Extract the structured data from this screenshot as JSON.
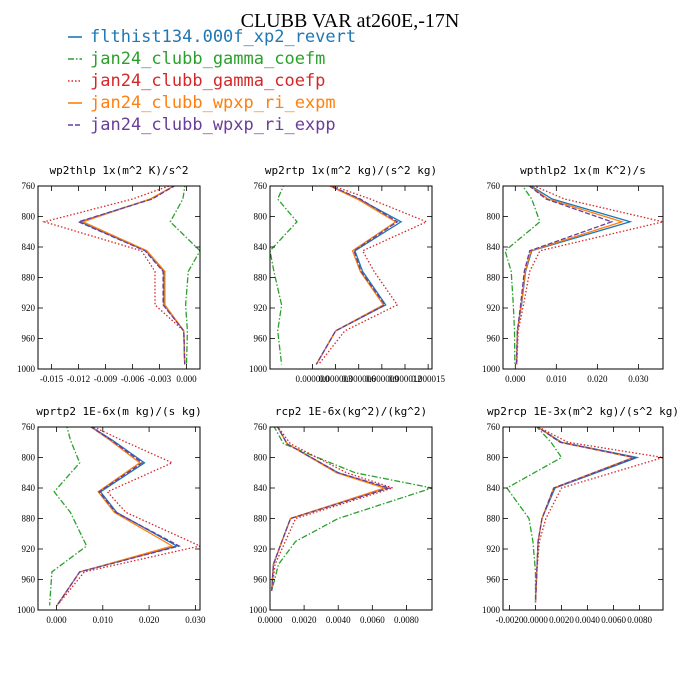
{
  "figure": {
    "title": "CLUBB VAR at260E,-17N"
  },
  "legend": [
    {
      "name": "flthist134.000f_xp2_revert",
      "color": "#1f77b4",
      "dash": "solid"
    },
    {
      "name": "jan24_clubb_gamma_coefm",
      "color": "#2ca02c",
      "dash": "dashdot"
    },
    {
      "name": "jan24_clubb_gamma_coefp",
      "color": "#d62728",
      "dash": "dot"
    },
    {
      "name": "jan24_clubb_wpxp_ri_expm",
      "color": "#ff7f0e",
      "dash": "solid"
    },
    {
      "name": "jan24_clubb_wpxp_ri_expp",
      "color": "#6a3d9a",
      "dash": "dash"
    }
  ],
  "chart_data": [
    {
      "type": "line",
      "title": "wp2thlp  1x(m^2 K)/s^2",
      "xlim": [
        -0.0165,
        0.0015
      ],
      "ylim": [
        760,
        1000
      ],
      "xticks": [
        -0.015,
        -0.012,
        -0.009,
        -0.006,
        -0.003,
        0.0
      ],
      "xtick_labels": [
        "-0.015",
        "-0.012",
        "-0.009",
        "-0.006",
        "-0.003",
        "0.000"
      ],
      "yticks": [
        760,
        800,
        840,
        880,
        920,
        960,
        1000
      ],
      "ytick_labels": [
        "760",
        "800",
        "840",
        "880",
        "920",
        "960",
        "1000"
      ],
      "y": [
        754,
        777,
        807,
        845,
        872,
        916,
        950,
        994
      ],
      "series": [
        {
          "values": [
            -0.0005,
            -0.004,
            -0.0118,
            -0.0045,
            -0.0025,
            -0.0025,
            -0.0003,
            -0.0002
          ]
        },
        {
          "values": [
            -0.0001,
            -0.0004,
            -0.0018,
            0.0015,
            0.0002,
            -0.0001,
            0.0001,
            0.0
          ]
        },
        {
          "values": [
            -0.0005,
            -0.006,
            -0.0158,
            -0.005,
            -0.0035,
            -0.0035,
            -0.0003,
            -0.0002
          ]
        },
        {
          "values": [
            -0.0005,
            -0.004,
            -0.0115,
            -0.0044,
            -0.0024,
            -0.0024,
            -0.0003,
            -0.0002
          ]
        },
        {
          "values": [
            -0.0005,
            -0.0038,
            -0.012,
            -0.0046,
            -0.0026,
            -0.0026,
            -0.0003,
            -0.0002
          ]
        }
      ]
    },
    {
      "type": "line",
      "title": "wp2rtp  1x(m^2 kg)/(s^2 kg)",
      "xlim": [
        -5.5e-06,
        1.55e-05
      ],
      "ylim": [
        760,
        1000
      ],
      "xticks": [
        0.0,
        3e-06,
        6e-06,
        9e-06,
        1.2e-05,
        1.5e-05
      ],
      "xtick_labels": [
        "0.000000",
        "0.000003",
        "0.000006",
        "0.000009",
        "0.000012",
        "0.000015"
      ],
      "yticks": [
        760,
        800,
        840,
        880,
        920,
        960,
        1000
      ],
      "ytick_labels": [
        "760",
        "800",
        "840",
        "880",
        "920",
        "960",
        "1000"
      ],
      "y": [
        754,
        777,
        807,
        845,
        872,
        916,
        950,
        994
      ],
      "series": [
        {
          "values": [
            1e-06,
            6e-06,
            1.15e-05,
            5.5e-06,
            6.5e-06,
            9.5e-06,
            3e-06,
            5e-07
          ]
        },
        {
          "values": [
            -3.5e-06,
            -4.5e-06,
            -2e-06,
            -5.5e-06,
            -5e-06,
            -4e-06,
            -4.5e-06,
            -4e-06
          ]
        },
        {
          "values": [
            1e-06,
            7.5e-06,
            1.48e-05,
            6.5e-06,
            8e-06,
            1.1e-05,
            4.2e-06,
            8e-07
          ]
        },
        {
          "values": [
            1e-06,
            5.8e-06,
            1.08e-05,
            5.2e-06,
            6.2e-06,
            9.2e-06,
            3e-06,
            5e-07
          ]
        },
        {
          "values": [
            1e-06,
            6.2e-06,
            1.1e-05,
            5.4e-06,
            6.3e-06,
            9.4e-06,
            3e-06,
            5e-07
          ]
        }
      ]
    },
    {
      "type": "line",
      "title": "wpthlp2  1x(m K^2)/s",
      "xlim": [
        -0.003,
        0.036
      ],
      "ylim": [
        760,
        1000
      ],
      "xticks": [
        0.0,
        0.01,
        0.02,
        0.03
      ],
      "xtick_labels": [
        "0.000",
        "0.010",
        "0.020",
        "0.030"
      ],
      "yticks": [
        760,
        800,
        840,
        880,
        920,
        960,
        1000
      ],
      "ytick_labels": [
        "760",
        "800",
        "840",
        "880",
        "920",
        "960",
        "1000"
      ],
      "y": [
        754,
        777,
        807,
        845,
        872,
        916,
        950,
        994
      ],
      "series": [
        {
          "values": [
            0.002,
            0.009,
            0.028,
            0.004,
            0.0025,
            0.0015,
            0.0005,
            0.0003
          ]
        },
        {
          "values": [
            0.001,
            0.004,
            0.006,
            -0.0025,
            -0.001,
            -0.0005,
            -0.0002,
            -0.0001
          ]
        },
        {
          "values": [
            0.002,
            0.012,
            0.036,
            0.006,
            0.0035,
            0.002,
            0.0007,
            0.0004
          ]
        },
        {
          "values": [
            0.002,
            0.008,
            0.026,
            0.0038,
            0.0024,
            0.0014,
            0.0005,
            0.0003
          ]
        },
        {
          "values": [
            0.002,
            0.0075,
            0.0235,
            0.0035,
            0.0022,
            0.0013,
            0.0005,
            0.0003
          ]
        }
      ]
    },
    {
      "type": "line",
      "title": "wprtp2  1E-6x(m kg)/(s kg)",
      "xlim": [
        -0.004,
        0.031
      ],
      "ylim": [
        760,
        1000
      ],
      "xticks": [
        0.0,
        0.01,
        0.02,
        0.03
      ],
      "xtick_labels": [
        "0.000",
        "0.010",
        "0.020",
        "0.030"
      ],
      "yticks": [
        760,
        800,
        840,
        880,
        920,
        960,
        1000
      ],
      "ytick_labels": [
        "760",
        "800",
        "840",
        "880",
        "920",
        "960",
        "1000"
      ],
      "y": [
        754,
        777,
        807,
        845,
        872,
        916,
        950,
        994
      ],
      "series": [
        {
          "values": [
            0.006,
            0.012,
            0.019,
            0.0095,
            0.013,
            0.026,
            0.005,
            0.0001
          ]
        },
        {
          "values": [
            0.002,
            0.003,
            0.005,
            -0.0005,
            0.003,
            0.0065,
            -0.001,
            -0.0015
          ]
        },
        {
          "values": [
            0.006,
            0.014,
            0.025,
            0.011,
            0.015,
            0.031,
            0.006,
            0.0002
          ]
        },
        {
          "values": [
            0.006,
            0.0115,
            0.018,
            0.009,
            0.0125,
            0.025,
            0.005,
            0.0001
          ]
        },
        {
          "values": [
            0.006,
            0.0118,
            0.0185,
            0.0092,
            0.0128,
            0.0265,
            0.005,
            0.0001
          ]
        }
      ]
    },
    {
      "type": "line",
      "title": "rcp2  1E-6x(kg^2)/(kg^2)",
      "xlim": [
        0.0,
        0.0095
      ],
      "ylim": [
        760,
        1000
      ],
      "xticks": [
        0.0,
        0.002,
        0.004,
        0.006,
        0.008
      ],
      "xtick_labels": [
        "0.0000",
        "0.0020",
        "0.0040",
        "0.0060",
        "0.0080"
      ],
      "yticks": [
        760,
        800,
        840,
        880,
        920,
        960,
        1000
      ],
      "ytick_labels": [
        "760",
        "800",
        "840",
        "880",
        "920",
        "960",
        "1000"
      ],
      "y": [
        758,
        782,
        820,
        840,
        880,
        910,
        940,
        975
      ],
      "series": [
        {
          "values": [
            0.0004,
            0.001,
            0.004,
            0.0068,
            0.0012,
            0.0007,
            0.0002,
            0.0001
          ]
        },
        {
          "values": [
            0.0002,
            0.0008,
            0.005,
            0.0095,
            0.004,
            0.0015,
            0.0005,
            0.0001
          ]
        },
        {
          "values": [
            0.0004,
            0.0012,
            0.0045,
            0.0072,
            0.0015,
            0.0009,
            0.0003,
            0.0001
          ]
        },
        {
          "values": [
            0.0004,
            0.001,
            0.0039,
            0.0067,
            0.0012,
            0.0007,
            0.0002,
            0.0001
          ]
        },
        {
          "values": [
            0.0004,
            0.001,
            0.004,
            0.007,
            0.0012,
            0.0007,
            0.0002,
            0.0001
          ]
        }
      ]
    },
    {
      "type": "line",
      "title": "wp2rcp  1E-3x(m^2 kg)/(s^2 kg)",
      "xlim": [
        -0.0025,
        0.0098
      ],
      "ylim": [
        760,
        1000
      ],
      "xticks": [
        -0.002,
        0.0,
        0.002,
        0.004,
        0.006,
        0.008
      ],
      "xtick_labels": [
        "-0.0020",
        "0.0000",
        "0.0020",
        "0.0040",
        "0.0060",
        "0.0080"
      ],
      "yticks": [
        760,
        800,
        840,
        880,
        920,
        960,
        1000
      ],
      "ytick_labels": [
        "760",
        "800",
        "840",
        "880",
        "920",
        "960",
        "1000"
      ],
      "y": [
        758,
        780,
        800,
        840,
        880,
        910,
        950,
        990
      ],
      "series": [
        {
          "values": [
            0.0,
            0.002,
            0.0078,
            0.0015,
            0.0005,
            0.0002,
            0.0001,
            0.0
          ]
        },
        {
          "values": [
            0.0,
            0.0012,
            0.002,
            -0.0022,
            -0.0005,
            -0.0002,
            0.0,
            0.0
          ]
        },
        {
          "values": [
            0.0,
            0.0025,
            0.0098,
            0.002,
            0.0008,
            0.0003,
            0.0001,
            0.0
          ]
        },
        {
          "values": [
            0.0,
            0.0019,
            0.0075,
            0.0014,
            0.0005,
            0.0002,
            0.0001,
            0.0
          ]
        },
        {
          "values": [
            0.0,
            0.0019,
            0.0076,
            0.0014,
            0.0005,
            0.0002,
            0.0001,
            0.0
          ]
        }
      ]
    }
  ]
}
